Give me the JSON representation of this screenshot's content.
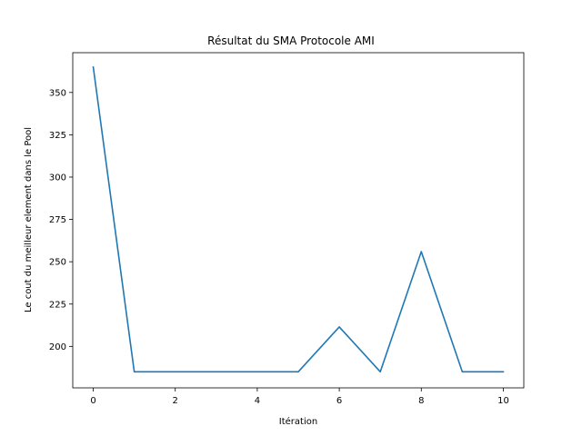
{
  "chart_data": {
    "type": "line",
    "title": "Résultat du SMA Protocole AMI",
    "xlabel": "Itération",
    "ylabel": "Le cout du meilleur element dans le Pool",
    "xlim": [
      -0.5,
      10.5
    ],
    "ylim": [
      175.5,
      373.5
    ],
    "x_ticks": [
      0,
      2,
      4,
      6,
      8,
      10
    ],
    "y_ticks": [
      200,
      225,
      250,
      275,
      300,
      325,
      350
    ],
    "grid": false,
    "legend": "none",
    "series": [
      {
        "color": "#1f77b4",
        "x": [
          0,
          1,
          2,
          3,
          4,
          5,
          6,
          7,
          8,
          9,
          10
        ],
        "y": [
          365,
          185,
          185,
          185,
          185,
          185,
          211.5,
          185,
          256,
          185,
          185
        ]
      }
    ]
  }
}
